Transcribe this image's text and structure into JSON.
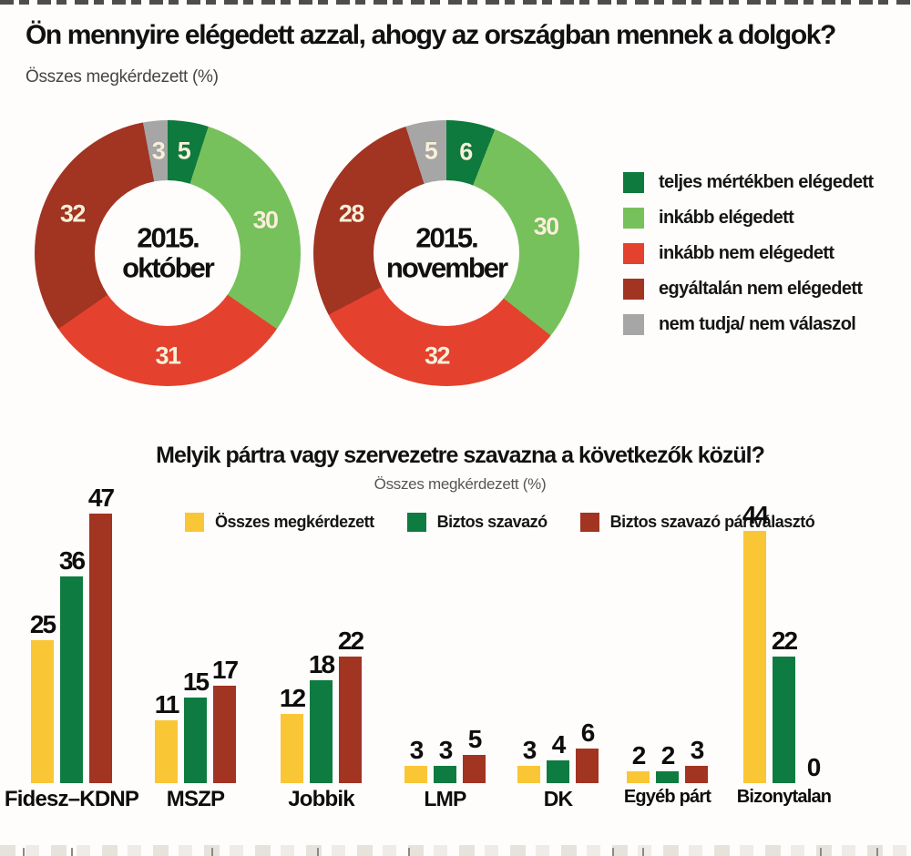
{
  "page": {
    "title": "Ön mennyire elégedett azzal, ahogy az országban mennek a dolgok?",
    "subtitle": "Összes megkérdezett (%)"
  },
  "chart_data": [
    {
      "type": "pie",
      "variant": "donut-pair",
      "title": "Ön mennyire elégedett azzal, ahogy az országban mennek a dolgok?",
      "subtitle": "Összes megkérdezett (%)",
      "unit": "%",
      "legend_position": "right",
      "categories": [
        "teljes mértékben elégedett",
        "inkább elégedett",
        "inkább nem elégedett",
        "egyáltalán nem elégedett",
        "nem tudja/ nem válaszol"
      ],
      "colors": [
        "#0e7a3d",
        "#77c15c",
        "#e4422e",
        "#a23422",
        "#a6a6a6"
      ],
      "donuts": [
        {
          "center_label_lines": [
            "2015.",
            "október"
          ],
          "values": [
            5,
            30,
            31,
            32,
            3
          ]
        },
        {
          "center_label_lines": [
            "2015.",
            "november"
          ],
          "values": [
            6,
            30,
            32,
            28,
            5
          ]
        }
      ]
    },
    {
      "type": "bar",
      "title": "Melyik pártra vagy szervezetre szavazna a következők közül?",
      "subtitle": "Összes megkérdezett (%)",
      "unit": "%",
      "legend_position": "top",
      "grid": false,
      "ylim": [
        0,
        50
      ],
      "categories": [
        "Fidesz–KDNP",
        "MSZP",
        "Jobbik",
        "LMP",
        "DK",
        "Egyéb párt",
        "Bizonytalan"
      ],
      "series": [
        {
          "name": "Összes megkérdezett",
          "color": "#f9c636",
          "values": [
            25,
            11,
            12,
            3,
            3,
            2,
            44
          ]
        },
        {
          "name": "Biztos szavazó",
          "color": "#0e7c41",
          "values": [
            36,
            15,
            18,
            3,
            4,
            2,
            22
          ]
        },
        {
          "name": "Biztos szavazó pártválasztó",
          "color": "#a23422",
          "values": [
            47,
            17,
            22,
            5,
            6,
            3,
            0
          ]
        }
      ]
    }
  ]
}
